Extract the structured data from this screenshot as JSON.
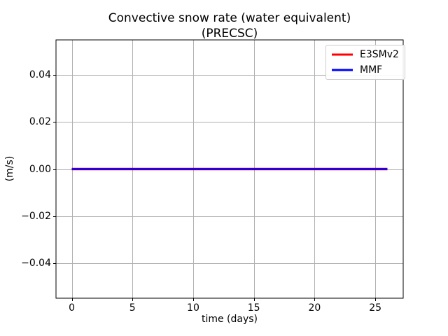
{
  "figure": {
    "title_line1": "Convective snow rate (water equivalent)",
    "title_line2": "(PRECSC)",
    "xlabel": "time (days)",
    "ylabel": "(m/s)"
  },
  "legend": {
    "entries": [
      {
        "label": "E3SMv2",
        "color": "#ff0000"
      },
      {
        "label": "MMF",
        "color": "#0000ff"
      }
    ]
  },
  "chart_data": {
    "type": "line",
    "title": "Convective snow rate (water equivalent) (PRECSC)",
    "xlabel": "time (days)",
    "ylabel": "(m/s)",
    "xlim": [
      -1.3,
      27.3
    ],
    "ylim": [
      -0.055,
      0.055
    ],
    "x_ticks": [
      0,
      5,
      10,
      15,
      20,
      25
    ],
    "x_tick_labels": [
      "0",
      "5",
      "10",
      "15",
      "20",
      "25"
    ],
    "y_ticks": [
      -0.04,
      -0.02,
      0.0,
      0.02,
      0.04
    ],
    "y_tick_labels": [
      "−0.04",
      "−0.02",
      "0.00",
      "0.02",
      "0.04"
    ],
    "grid": true,
    "grid_color": "#b0b0b0",
    "spine_color": "#000000",
    "legend_position": "upper right",
    "series": [
      {
        "name": "E3SMv2",
        "color": "#ff0000",
        "x": [
          0,
          26
        ],
        "y": [
          0,
          0
        ]
      },
      {
        "name": "MMF",
        "color": "#0000ff",
        "x": [
          0,
          26
        ],
        "y": [
          0,
          0
        ]
      }
    ]
  }
}
